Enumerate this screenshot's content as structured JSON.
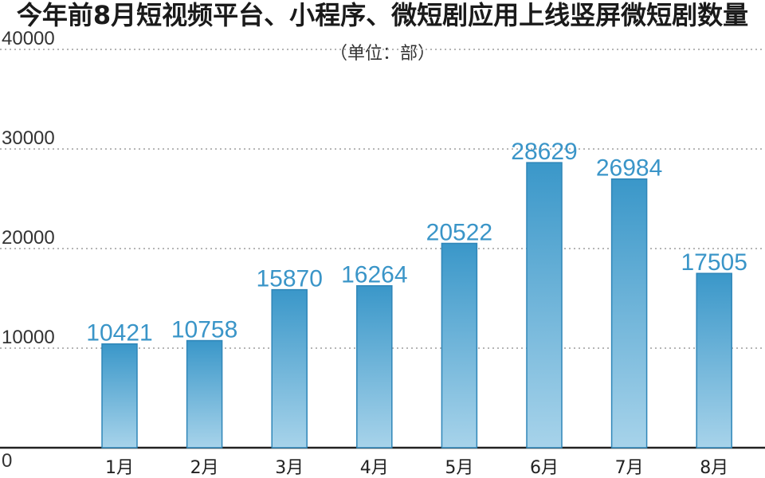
{
  "chart_data": {
    "type": "bar",
    "title": "今年前8月短视频平台、小程序、微短剧应用上线竖屏微短剧数量",
    "unit": "（单位：部）",
    "categories": [
      "1月",
      "2月",
      "3月",
      "4月",
      "5月",
      "6月",
      "7月",
      "8月"
    ],
    "values": [
      10421,
      10758,
      15870,
      16264,
      20522,
      28629,
      26984,
      17505
    ],
    "value_labels": [
      "10421",
      "10758",
      "15870",
      "16264",
      "20522",
      "28629",
      "26984",
      "17505"
    ],
    "yticks": [
      0,
      10000,
      20000,
      30000,
      40000
    ],
    "ytick_labels": [
      "0",
      "10000",
      "20000",
      "30000",
      "40000"
    ],
    "ylim": [
      0,
      40000
    ],
    "grid": true,
    "bar_color_top": "#3a97c9",
    "bar_color_bottom": "#a7d3ea",
    "label_color": "#3a95c8"
  }
}
